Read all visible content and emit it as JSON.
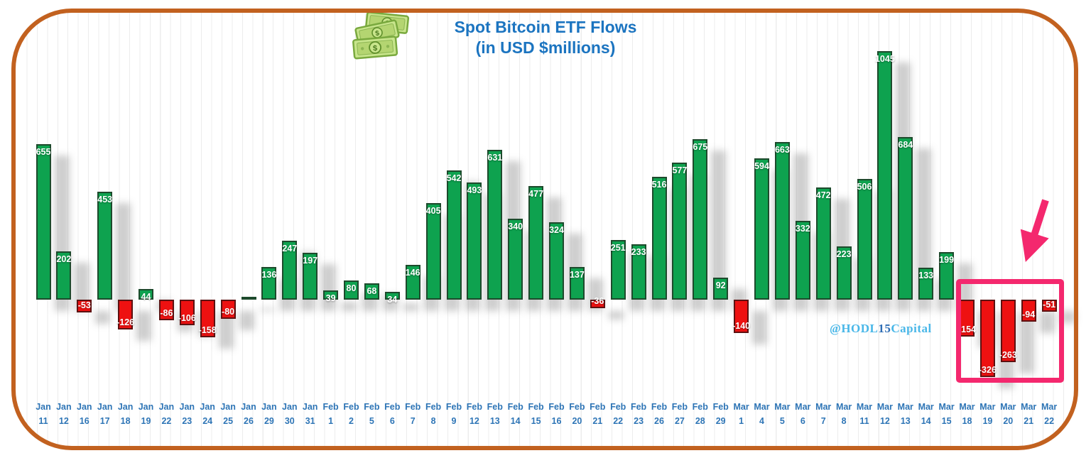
{
  "header": {
    "title_line1": "Spot Bitcoin ETF Flows",
    "title_line2": "(in USD $millions)"
  },
  "watermark": {
    "pre": "@HODL",
    "num": "15",
    "post": "Capital"
  },
  "icons": {
    "money": "money-bills-icon",
    "arrow": "pink-arrow-icon"
  },
  "colors": {
    "positive_green": "#0ea24f",
    "negative_red": "#ee1111",
    "title_blue": "#1b74c0",
    "date_blue": "#2e75b6",
    "frame_orange": "#c2611f",
    "highlight_pink": "#f4286e",
    "watermark_blue": "#49b7e8",
    "bar_label_white": "#ffffff",
    "pinstripe_gray": "#ececec"
  },
  "chart_data": {
    "type": "bar",
    "title": "Spot Bitcoin ETF Flows",
    "subtitle": "(in USD $millions)",
    "unit": "USD $millions",
    "xlabel": "",
    "ylabel": "",
    "ylim": [
      -400,
      1100
    ],
    "grid": "faint vertical pinstripes only",
    "legend": "none",
    "categories": [
      "Jan 11",
      "Jan 12",
      "Jan 16",
      "Jan 17",
      "Jan 18",
      "Jan 19",
      "Jan 22",
      "Jan 23",
      "Jan 24",
      "Jan 25",
      "Jan 26",
      "Jan 29",
      "Jan 30",
      "Jan 31",
      "Feb 1",
      "Feb 2",
      "Feb 5",
      "Feb 6",
      "Feb 7",
      "Feb 8",
      "Feb 9",
      "Feb 12",
      "Feb 13",
      "Feb 14",
      "Feb 15",
      "Feb 16",
      "Feb 20",
      "Feb 21",
      "Feb 22",
      "Feb 23",
      "Feb 26",
      "Feb 27",
      "Feb 28",
      "Feb 29",
      "Mar 1",
      "Mar 4",
      "Mar 5",
      "Mar 6",
      "Mar 7",
      "Mar 8",
      "Mar 11",
      "Mar 12",
      "Mar 13",
      "Mar 14",
      "Mar 15",
      "Mar 18",
      "Mar 19",
      "Mar 20",
      "Mar 21",
      "Mar 22"
    ],
    "values": [
      655,
      202,
      -53,
      453,
      -126,
      44,
      -86,
      -106,
      -158,
      -80,
      12,
      136,
      247,
      197,
      39,
      80,
      68,
      34,
      146,
      405,
      542,
      493,
      631,
      340,
      477,
      324,
      137,
      -36,
      251,
      233,
      516,
      577,
      675,
      92,
      -140,
      594,
      663,
      332,
      472,
      223,
      506,
      1045,
      684,
      133,
      199,
      -154,
      -326,
      -263,
      -94,
      -51
    ],
    "labels": [
      "655",
      "202",
      "-53",
      "453",
      "-126",
      "44",
      "-86",
      "-106",
      "-158",
      "-80",
      "",
      "136",
      "247",
      "197",
      "39",
      "80",
      "68",
      "34",
      "146",
      "405",
      "542",
      "493",
      "631",
      "340",
      "477",
      "324",
      "137",
      "-36",
      "251",
      "233",
      "516",
      "577",
      "675",
      "92",
      "-140",
      "594",
      "663",
      "332",
      "472",
      "223",
      "506",
      "1045",
      "684",
      "133",
      "199",
      "-154",
      "-326",
      "-263",
      "-94",
      "-51"
    ],
    "positive_color": "#0ea24f",
    "negative_color": "#ee1111",
    "annotations": {
      "watermark": "@HODL15Capital",
      "highlight_box": {
        "from": "Mar 18",
        "to": "Mar 22",
        "color": "#f4286e"
      },
      "arrow": {
        "color": "#f4286e",
        "points_to": "highlighted March outflow bars"
      }
    }
  }
}
